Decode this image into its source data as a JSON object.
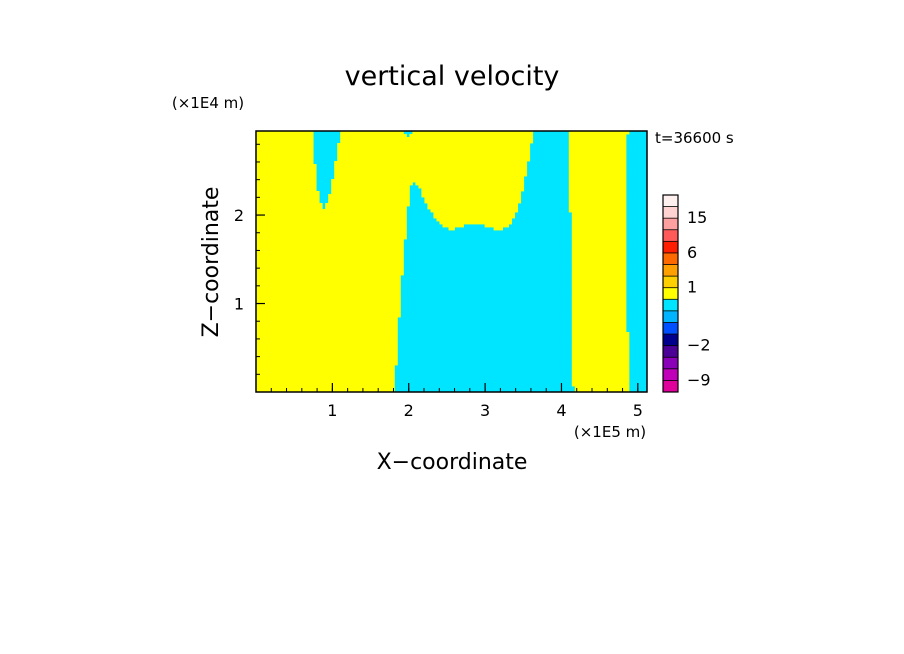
{
  "chart_data": {
    "type": "heatmap",
    "title": "vertical velocity",
    "xlabel": "X−coordinate",
    "ylabel": "Z−coordinate",
    "x_unit": "(×1E5 m)",
    "y_unit": "(×1E4 m)",
    "time_label": "t=36600 s",
    "xlim": [
      0,
      5.12
    ],
    "ylim": [
      0,
      2.95
    ],
    "x_ticks": [
      {
        "value": 1,
        "label": "1"
      },
      {
        "value": 2,
        "label": "2"
      },
      {
        "value": 3,
        "label": "3"
      },
      {
        "value": 4,
        "label": "4"
      },
      {
        "value": 5,
        "label": "5"
      }
    ],
    "x_minor_step": 0.2,
    "y_ticks": [
      {
        "value": 1,
        "label": "1"
      },
      {
        "value": 2,
        "label": "2"
      }
    ],
    "y_minor_step": 0.2,
    "field_colors": {
      "positive": "#ffff00",
      "negative": "#00e5ff"
    },
    "colorbar": {
      "levels": [
        -12,
        -9,
        -6,
        -4,
        -2,
        -1,
        -0.5,
        0,
        0.5,
        1,
        2,
        4,
        6,
        9,
        12,
        15,
        18,
        22
      ],
      "colors": [
        "#e0009a",
        "#c000b8",
        "#8a00b8",
        "#4b0096",
        "#00008c",
        "#0050ff",
        "#00b4ff",
        "#00e5ff",
        "#ffff00",
        "#ffd000",
        "#ffa000",
        "#ff6a00",
        "#ff1e00",
        "#ff5a5a",
        "#ffa0a0",
        "#ffd2d2",
        "#fff0f0"
      ],
      "tick_labels": [
        {
          "value": -9,
          "label": "−9"
        },
        {
          "value": -2,
          "label": "−2"
        },
        {
          "value": 1,
          "label": "1"
        },
        {
          "value": 6,
          "label": "6"
        },
        {
          "value": 15,
          "label": "15"
        }
      ]
    }
  }
}
